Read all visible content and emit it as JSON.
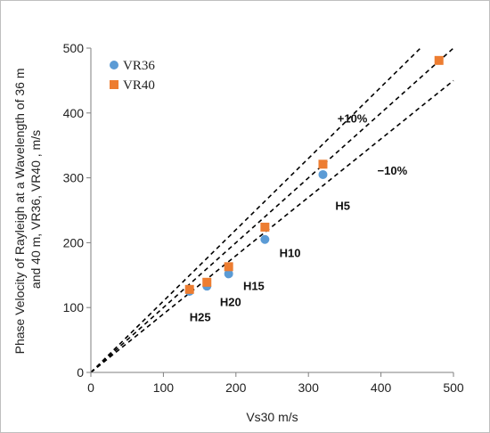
{
  "chart_data": {
    "type": "scatter",
    "title": "",
    "xlabel": "Vs30 m/s",
    "ylabel_lines": [
      "Phase Velocity of Rayleigh  at a Wavelength of 36 m",
      "and 40 m, VR36, VR40 , m/s"
    ],
    "xlim": [
      0,
      500
    ],
    "ylim": [
      0,
      500
    ],
    "x_ticks": [
      "0",
      "100",
      "200",
      "300",
      "400",
      "500"
    ],
    "y_ticks": [
      "0",
      "100",
      "200",
      "300",
      "400",
      "500"
    ],
    "grid": false,
    "legend_position": "top-left",
    "series": [
      {
        "name": "VR36",
        "marker": "circle",
        "color": "#5b9bd5",
        "points": [
          [
            136,
            125
          ],
          [
            160,
            133
          ],
          [
            190,
            152
          ],
          [
            240,
            205
          ],
          [
            320,
            305
          ]
        ]
      },
      {
        "name": "VR40",
        "marker": "square",
        "color": "#ed7d31",
        "points": [
          [
            136,
            128
          ],
          [
            160,
            139
          ],
          [
            190,
            163
          ],
          [
            240,
            224
          ],
          [
            320,
            321
          ],
          [
            480,
            481
          ]
        ]
      }
    ],
    "reference_lines": [
      {
        "slope": 1.1,
        "style": "dashed"
      },
      {
        "slope": 1.0,
        "style": "dashed"
      },
      {
        "slope": 0.9,
        "style": "dashed"
      }
    ],
    "annotations": [
      {
        "text": "+10%",
        "x": 340,
        "y": 385
      },
      {
        "text": "−10%",
        "x": 395,
        "y": 305
      },
      {
        "text": "H5",
        "x": 337,
        "y": 251
      },
      {
        "text": "H10",
        "x": 260,
        "y": 178
      },
      {
        "text": "H15",
        "x": 210,
        "y": 127
      },
      {
        "text": "H20",
        "x": 178,
        "y": 102
      },
      {
        "text": "H25",
        "x": 136,
        "y": 79
      }
    ]
  }
}
